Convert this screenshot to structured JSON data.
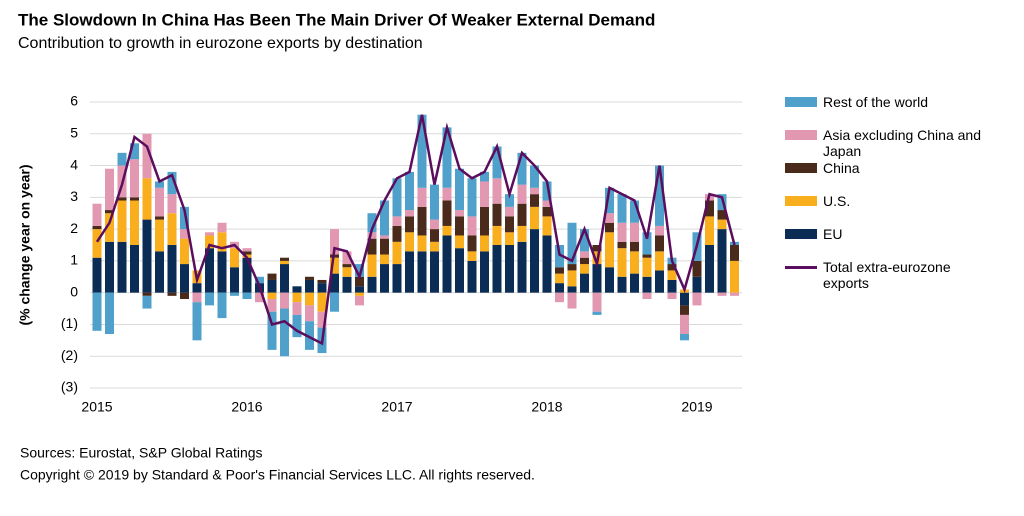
{
  "chart_data": {
    "type": "bar",
    "stacked": true,
    "title": "The Slowdown In China Has Been The Main Driver Of Weaker External Demand",
    "subtitle": "Contribution to growth in eurozone exports by destination",
    "y_label": "(% change year on year)",
    "source": "Sources: Eurostat, S&P Global Ratings",
    "copyright": "Copyright © 2019 by Standard & Poor's Financial Services LLC. All rights reserved.",
    "categories": [
      "2015",
      null,
      null,
      null,
      null,
      null,
      null,
      null,
      null,
      null,
      null,
      null,
      "2016",
      null,
      null,
      null,
      null,
      null,
      null,
      null,
      null,
      null,
      null,
      null,
      "2017",
      null,
      null,
      null,
      null,
      null,
      null,
      null,
      null,
      null,
      null,
      null,
      "2018",
      null,
      null,
      null,
      null,
      null,
      null,
      null,
      null,
      null,
      null,
      null,
      "2019",
      null,
      null,
      null
    ],
    "ylim": [
      -3,
      6
    ],
    "yticks": [
      {
        "value": -3,
        "label": "(3)"
      },
      {
        "value": -2,
        "label": "(2)"
      },
      {
        "value": -1,
        "label": "(1)"
      },
      0,
      1,
      2,
      3,
      4,
      5,
      6
    ],
    "grid": true,
    "legend": "right",
    "series": [
      {
        "name": "Rest of the world",
        "color": "#4fa1cb",
        "values": [
          -1.2,
          -1.3,
          0.4,
          0.5,
          -0.4,
          0.2,
          0.7,
          0.7,
          -1.2,
          -0.4,
          -0.8,
          -0.1,
          -0.2,
          0.2,
          -1.2,
          -1.5,
          -0.7,
          -0.9,
          -0.8,
          -0.6,
          0.0,
          0.4,
          0.6,
          1.1,
          1.2,
          1.2,
          2.3,
          1.1,
          1.9,
          1.3,
          1.2,
          0.3,
          1.0,
          0.4,
          1.0,
          0.7,
          0.6,
          0.7,
          1.3,
          0.7,
          -0.1,
          0.8,
          0.9,
          0.7,
          0.7,
          1.9,
          0.2,
          -0.2,
          0.9,
          0.0,
          0.5,
          0.1
        ]
      },
      {
        "name": "Asia excluding China and Japan",
        "color": "#e298b0",
        "values": [
          0.7,
          1.3,
          1.0,
          1.2,
          1.4,
          0.9,
          0.6,
          0.3,
          -0.3,
          0.1,
          0.3,
          0.2,
          0.1,
          -0.3,
          -0.4,
          -0.5,
          -0.4,
          -0.5,
          -0.5,
          0.8,
          0.4,
          -0.3,
          0.2,
          0.1,
          0.3,
          0.2,
          0.6,
          0.3,
          0.4,
          0.2,
          0.6,
          0.8,
          0.8,
          0.3,
          0.6,
          0.2,
          0.2,
          -0.3,
          -0.5,
          0.2,
          -0.6,
          0.3,
          0.6,
          0.6,
          -0.2,
          0.3,
          -0.2,
          -0.6,
          -0.4,
          0.2,
          -0.1,
          -0.1
        ]
      },
      {
        "name": "China",
        "color": "#4a2a1a",
        "values": [
          0.1,
          0.1,
          0.1,
          0.1,
          -0.1,
          0.1,
          -0.1,
          -0.2,
          0.0,
          0.0,
          0.0,
          0.0,
          0.1,
          0.0,
          0.2,
          0.1,
          0.0,
          0.1,
          0.1,
          0.1,
          0.1,
          0.3,
          0.5,
          0.5,
          0.5,
          0.5,
          0.9,
          0.4,
          0.8,
          0.6,
          0.5,
          0.9,
          0.7,
          0.5,
          0.7,
          0.4,
          0.3,
          0.2,
          0.2,
          0.2,
          0.2,
          0.3,
          0.2,
          0.3,
          0.1,
          0.5,
          0.2,
          -0.3,
          0.5,
          0.5,
          0.3,
          0.5
        ]
      },
      {
        "name": "U.S.",
        "color": "#f9ae1e",
        "values": [
          0.9,
          0.9,
          1.3,
          1.4,
          1.3,
          1.0,
          1.0,
          0.8,
          0.4,
          0.4,
          0.6,
          0.6,
          0.1,
          0.0,
          -0.2,
          0.1,
          -0.3,
          -0.4,
          -0.6,
          0.5,
          0.3,
          -0.1,
          0.7,
          0.3,
          0.7,
          0.6,
          0.5,
          0.3,
          0.3,
          0.4,
          0.3,
          0.5,
          0.6,
          0.4,
          0.5,
          0.7,
          0.6,
          0.3,
          0.5,
          0.3,
          0.4,
          1.1,
          0.9,
          0.7,
          0.6,
          0.6,
          0.3,
          0.1,
          0.0,
          0.9,
          0.3,
          1.0
        ]
      },
      {
        "name": "EU",
        "color": "#0b2d55",
        "values": [
          1.1,
          1.6,
          1.6,
          1.5,
          2.3,
          1.3,
          1.5,
          0.9,
          0.3,
          1.4,
          1.3,
          0.8,
          1.1,
          0.3,
          0.4,
          0.9,
          0.2,
          0.4,
          0.3,
          0.6,
          0.5,
          0.2,
          0.5,
          0.9,
          0.9,
          1.3,
          1.3,
          1.3,
          1.8,
          1.4,
          1.0,
          1.3,
          1.5,
          1.5,
          1.6,
          2.0,
          1.8,
          0.3,
          0.2,
          0.6,
          0.9,
          0.8,
          0.5,
          0.6,
          0.5,
          0.7,
          0.4,
          -0.4,
          0.5,
          1.5,
          2.0,
          0.0
        ]
      },
      {
        "name": "Total extra-eurozone exports",
        "color": "#5b0d5e",
        "type": "line",
        "values": [
          1.6,
          2.2,
          3.4,
          4.9,
          4.6,
          3.5,
          3.7,
          2.6,
          0.4,
          1.5,
          1.4,
          1.5,
          1.1,
          0.2,
          -1.0,
          -0.9,
          -1.2,
          -1.4,
          -1.6,
          1.4,
          1.3,
          0.5,
          2.0,
          2.9,
          3.6,
          3.8,
          5.6,
          3.4,
          5.2,
          3.9,
          3.6,
          3.8,
          4.6,
          3.1,
          4.4,
          4.0,
          3.5,
          1.2,
          1.0,
          2.0,
          0.9,
          3.3,
          3.1,
          2.9,
          1.7,
          4.0,
          1.0,
          0.1,
          1.5,
          3.1,
          3.0,
          1.5
        ]
      }
    ]
  }
}
